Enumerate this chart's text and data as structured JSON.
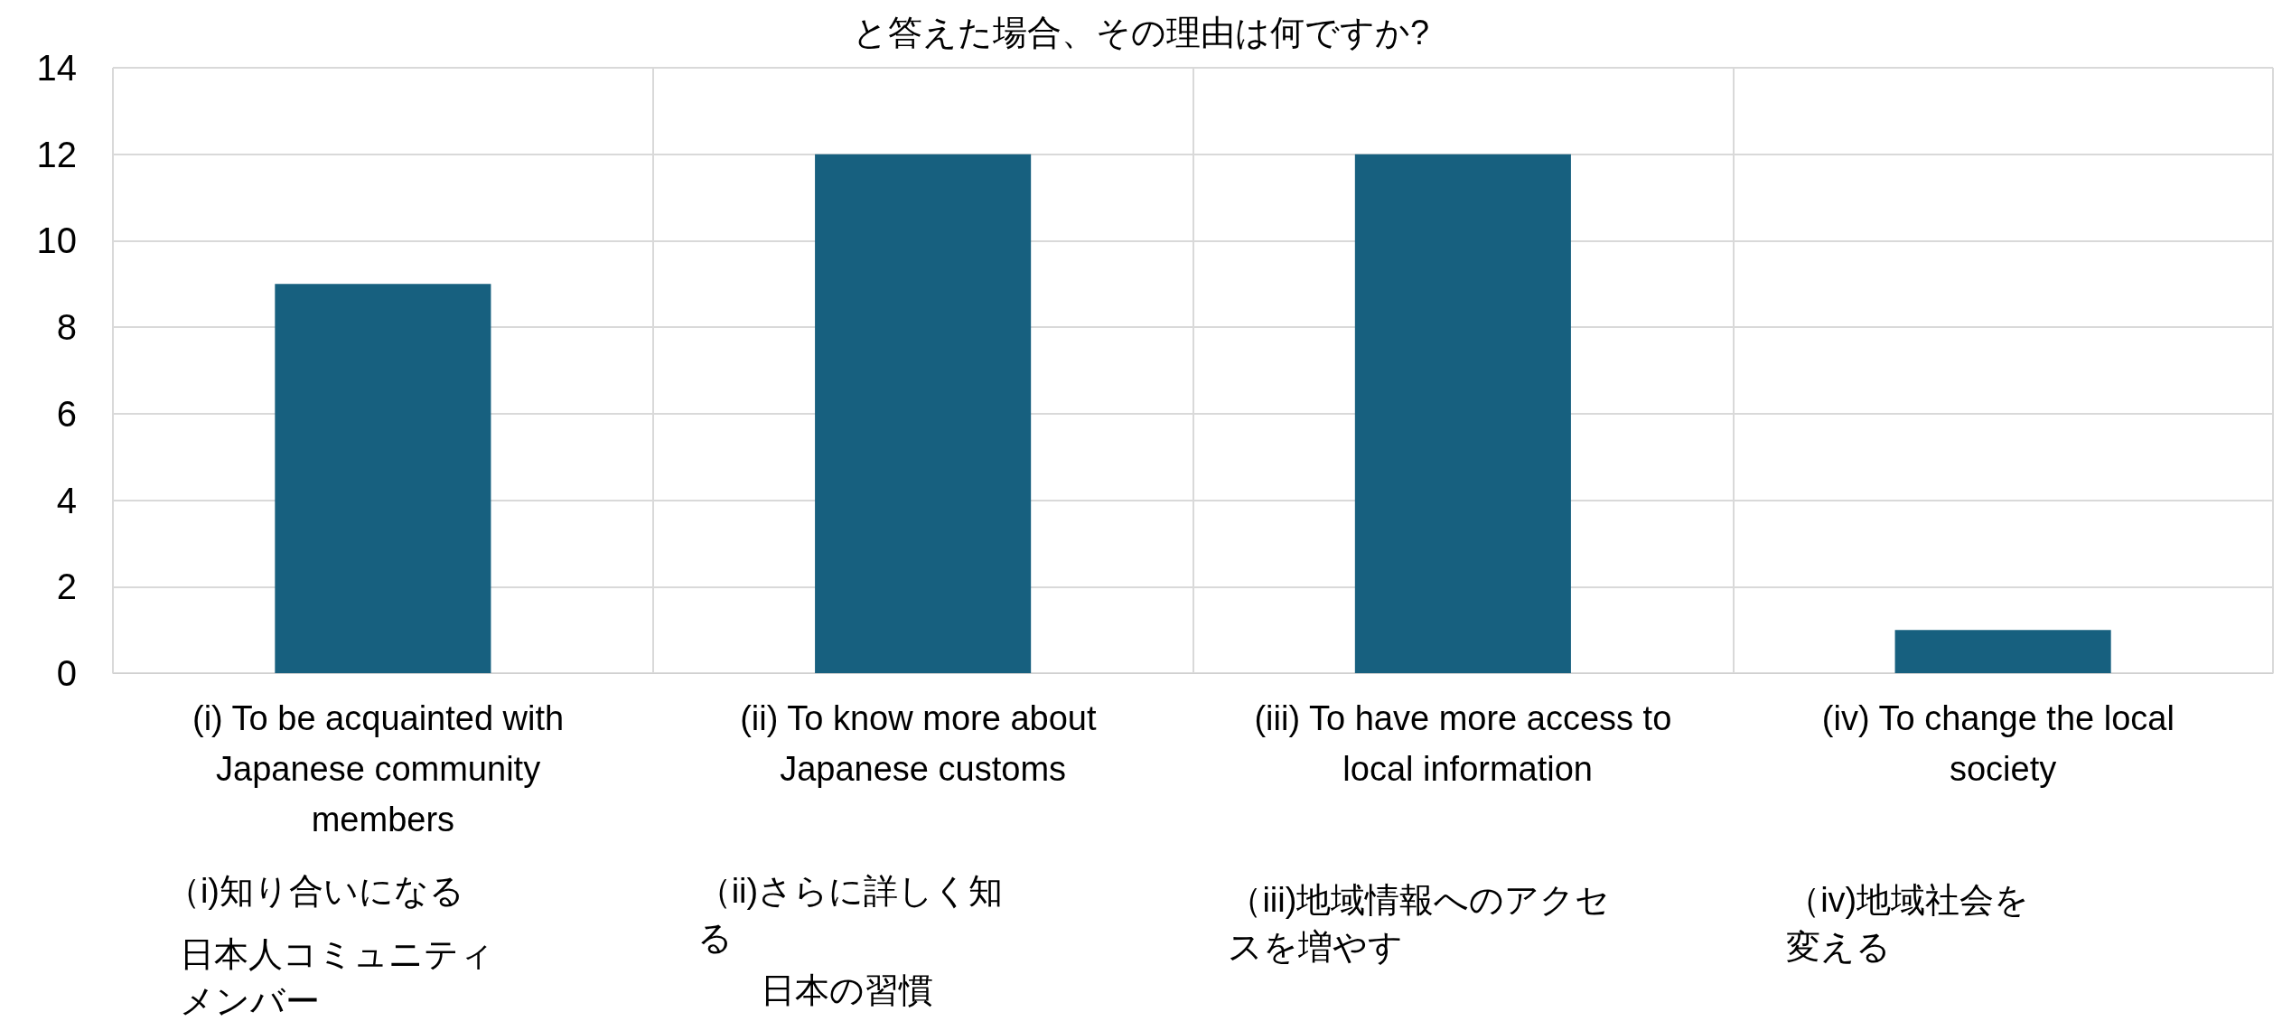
{
  "chart_data": {
    "type": "bar",
    "title": "と答えた場合、その理由は何ですか?",
    "categories": [
      "(i) To be acquainted with Japanese community members",
      "(ii) To know more about Japanese customs",
      "(iii) To have more access to local information",
      "(iv) To change the local society"
    ],
    "values": [
      9,
      12,
      12,
      1
    ],
    "color": "#17607f",
    "ylim": [
      0,
      14
    ],
    "yticks": [
      0,
      2,
      4,
      6,
      8,
      10,
      12,
      14
    ],
    "grid": true,
    "annotations": [
      "（i)知り合いになる",
      "日本人コミュニティメンバー",
      "（ii)さらに詳しく知る",
      "日本の習慣",
      "（iii)地域情報へのアクセスを増やす",
      "（iv)地域社会を変える"
    ]
  }
}
